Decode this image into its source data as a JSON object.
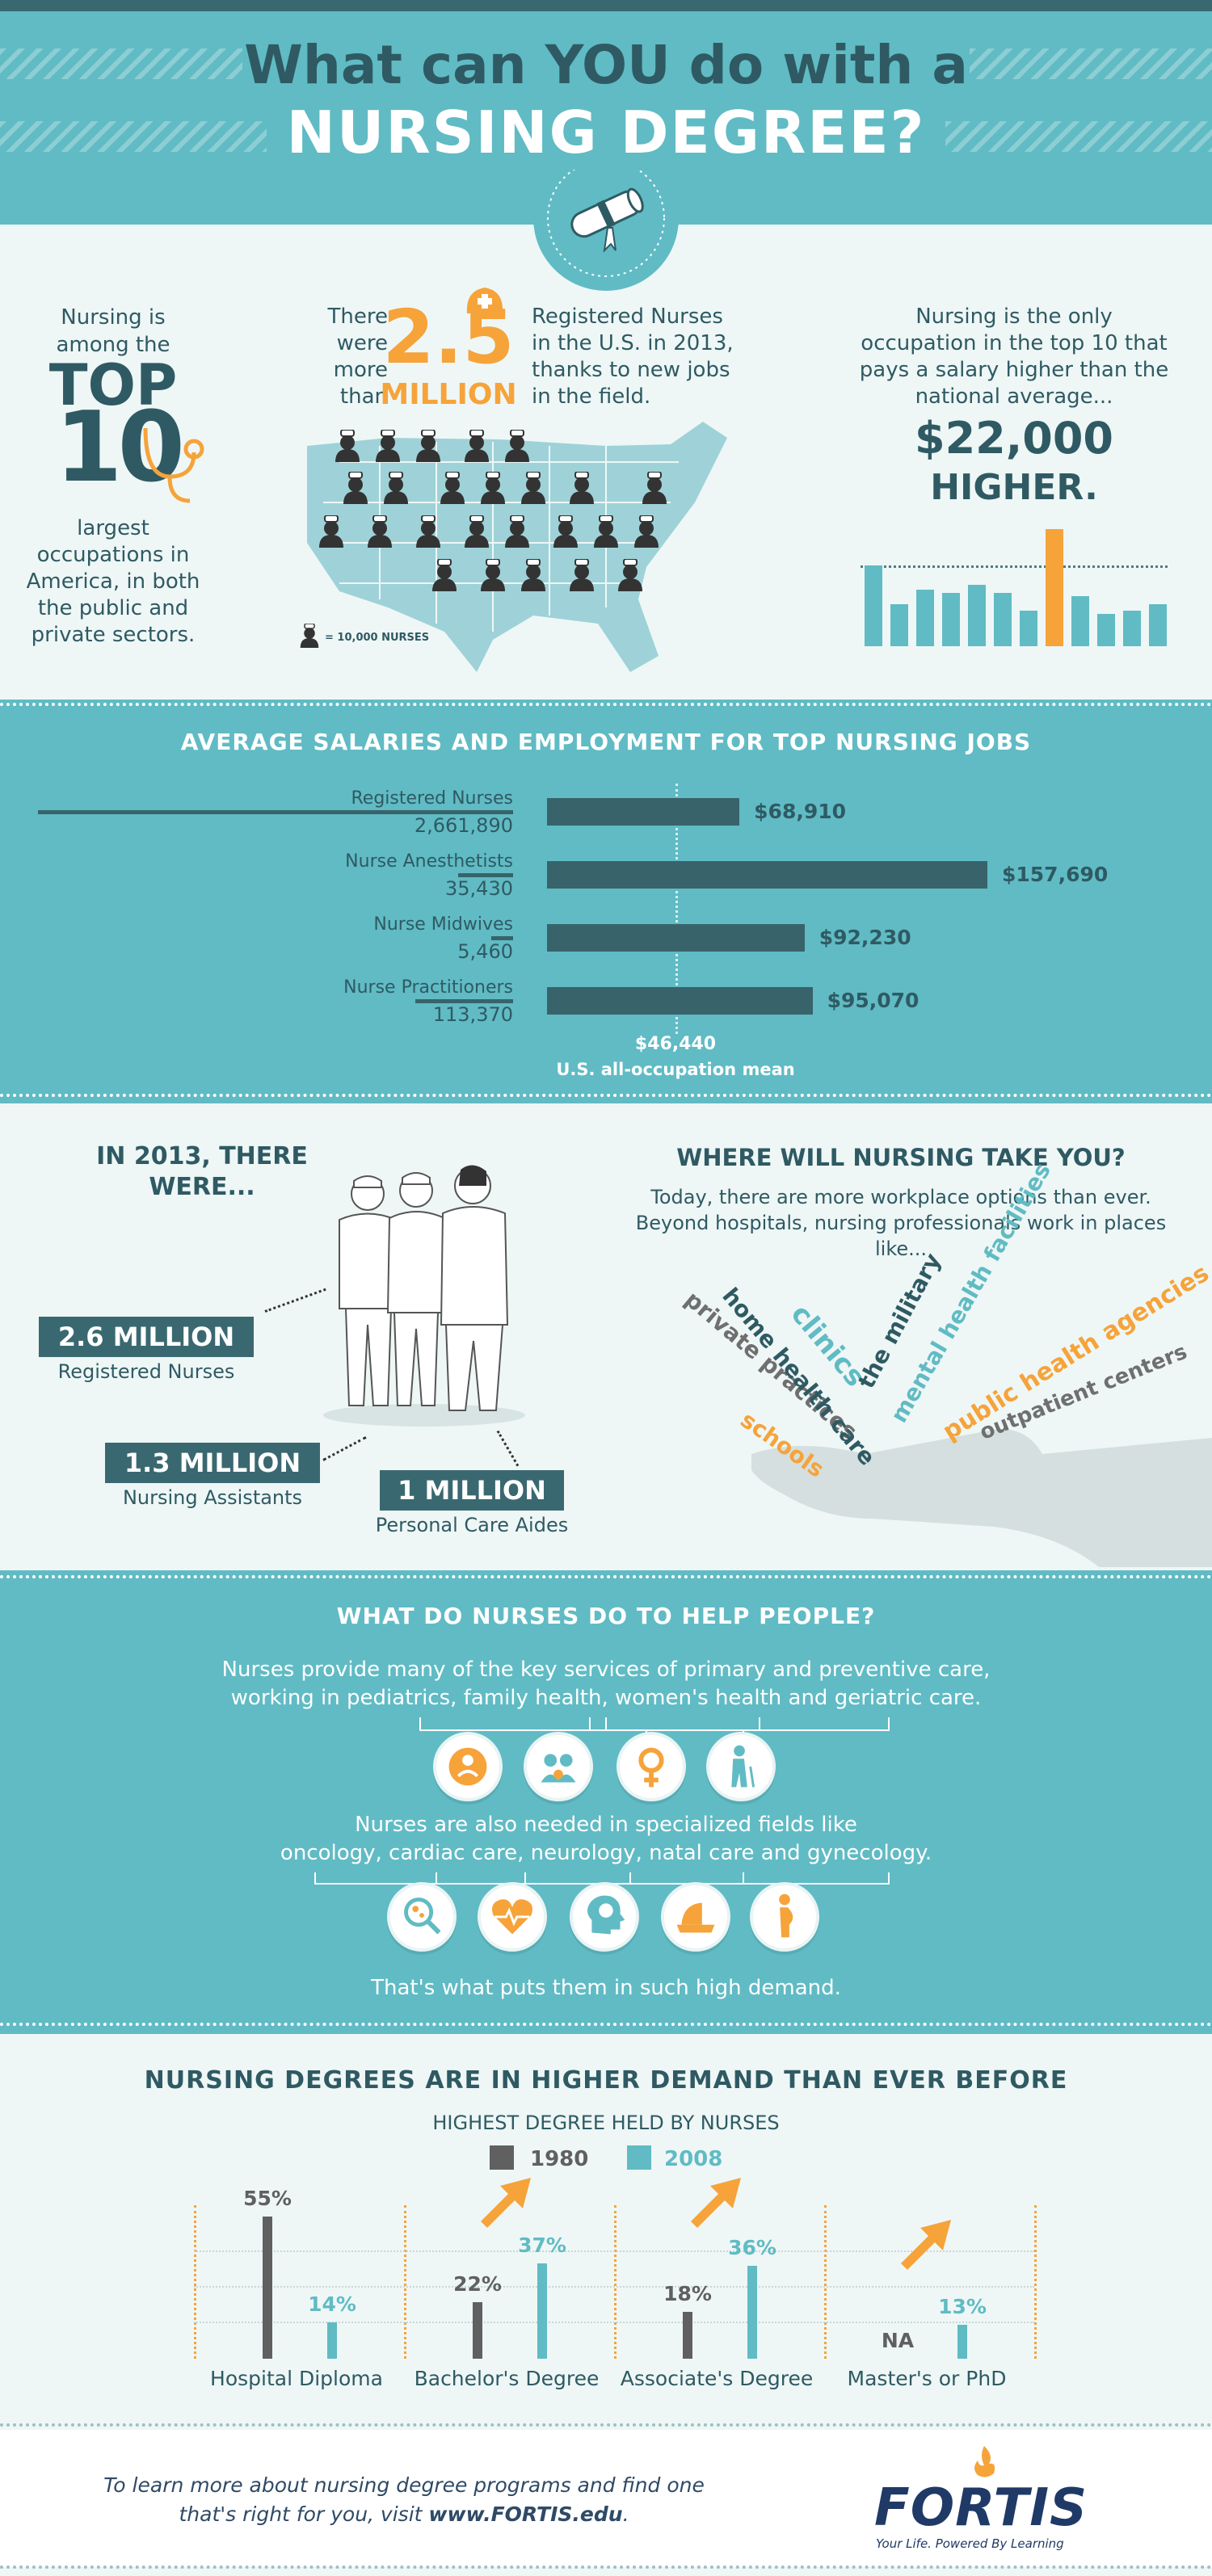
{
  "header": {
    "title_line1": "What can YOU do with a",
    "title_line2": "NURSING DEGREE?"
  },
  "intro": {
    "top10_before": "Nursing is among the",
    "top10_top": "TOP",
    "top10_num": "10",
    "top10_after": "largest occupations in America, in both the public and private sectors.",
    "million_lead": "There were more than",
    "million_num": "2.5",
    "million_word": "MILLION",
    "million_after": "Registered Nurses in the U.S. in 2013, thanks to new jobs in the field.",
    "map_legend": "= 10,000 NURSES",
    "higher_text": "Nursing is the only occupation in the top 10 that pays a salary higher than the national average...",
    "higher_amount": "$22,000",
    "higher_word": "HIGHER."
  },
  "salaries": {
    "title": "AVERAGE SALARIES AND EMPLOYMENT FOR TOP NURSING JOBS",
    "mean_value": "$46,440",
    "mean_label": "U.S. all-occupation mean",
    "jobs": [
      {
        "name": "Registered Nurses",
        "employment": "2,661,890",
        "salary": "$68,910",
        "salary_num": 68910,
        "employment_num": 2661890
      },
      {
        "name": "Nurse Anesthetists",
        "employment": "35,430",
        "salary": "$157,690",
        "salary_num": 157690,
        "employment_num": 35430
      },
      {
        "name": "Nurse Midwives",
        "employment": "5,460",
        "salary": "$92,230",
        "salary_num": 92230,
        "employment_num": 5460
      },
      {
        "name": "Nurse Practitioners",
        "employment": "113,370",
        "salary": "$95,070",
        "salary_num": 95070,
        "employment_num": 113370
      }
    ]
  },
  "in2013": {
    "title": "IN 2013, THERE WERE...",
    "stats": [
      {
        "value": "2.6 MILLION",
        "label": "Registered Nurses"
      },
      {
        "value": "1.3 MILLION",
        "label": "Nursing Assistants"
      },
      {
        "value": "1 MILLION",
        "label": "Personal Care Aides"
      }
    ]
  },
  "where": {
    "title": "WHERE WILL NURSING TAKE YOU?",
    "text": "Today, there are more workplace options than ever. Beyond hospitals, nursing professionals work in places like...",
    "words": [
      "private practices",
      "home health care",
      "clinics",
      "the military",
      "mental health facilities",
      "public health agencies",
      "outpatient centers",
      "schools"
    ]
  },
  "help": {
    "title": "WHAT DO NURSES DO TO HELP PEOPLE?",
    "text1_line1": "Nurses provide many of the key services of primary and preventive care,",
    "text1_line2": "working in pediatrics, family health, women's health and geriatric care.",
    "text2_line1": "Nurses are also needed in specialized fields like",
    "text2_line2": "oncology, cardiac care, neurology, natal care and gynecology.",
    "closing": "That's what puts them in such high demand.",
    "icons_row1": [
      "pediatrics-icon",
      "family-health-icon",
      "womens-health-icon",
      "geriatric-care-icon"
    ],
    "icons_row2": [
      "oncology-icon",
      "cardiac-care-icon",
      "neurology-icon",
      "natal-care-icon",
      "gynecology-icon"
    ]
  },
  "degrees": {
    "title": "NURSING DEGREES ARE IN HIGHER DEMAND THAN EVER BEFORE",
    "subtitle": "HIGHEST DEGREE HELD BY NURSES",
    "legend": [
      "1980",
      "2008"
    ],
    "colors": {
      "1980": "#606060",
      "2008": "#60bbc4",
      "accent": "#f6a33a"
    }
  },
  "chart_data": {
    "type": "bar",
    "title": "HIGHEST DEGREE HELD BY NURSES",
    "categories": [
      "Hospital Diploma",
      "Bachelor's Degree",
      "Associate's Degree",
      "Master's or PhD"
    ],
    "series": [
      {
        "name": "1980",
        "values": [
          55,
          22,
          18,
          null
        ],
        "labels": [
          "55%",
          "22%",
          "18%",
          "NA"
        ]
      },
      {
        "name": "2008",
        "values": [
          14,
          37,
          36,
          13
        ],
        "labels": [
          "14%",
          "37%",
          "36%",
          "13%"
        ]
      }
    ]
  },
  "footer": {
    "text_line1": "To learn more about nursing degree programs and find one",
    "text_line2_pre": "that's right for you, visit ",
    "text_line2_link": "www.FORTIS.edu",
    "text_line2_post": ".",
    "logo": "FORTIS",
    "tagline": "Your Life. Powered By Learning"
  }
}
